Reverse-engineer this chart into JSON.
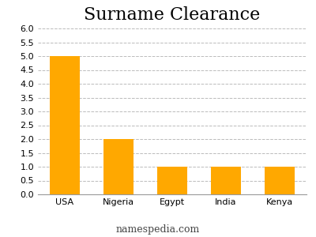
{
  "title": "Surname Clearance",
  "categories": [
    "USA",
    "Nigeria",
    "Egypt",
    "India",
    "Kenya"
  ],
  "values": [
    5.0,
    2.0,
    1.0,
    1.0,
    1.0
  ],
  "bar_color": "#FFA800",
  "ylim": [
    0,
    6
  ],
  "yticks": [
    0,
    0.5,
    1.0,
    1.5,
    2.0,
    2.5,
    3.0,
    3.5,
    4.0,
    4.5,
    5.0,
    5.5,
    6.0
  ],
  "grid_color": "#bbbbbb",
  "title_fontsize": 16,
  "tick_fontsize": 8,
  "footer_text": "namespedia.com",
  "footer_fontsize": 9,
  "background_color": "#ffffff"
}
